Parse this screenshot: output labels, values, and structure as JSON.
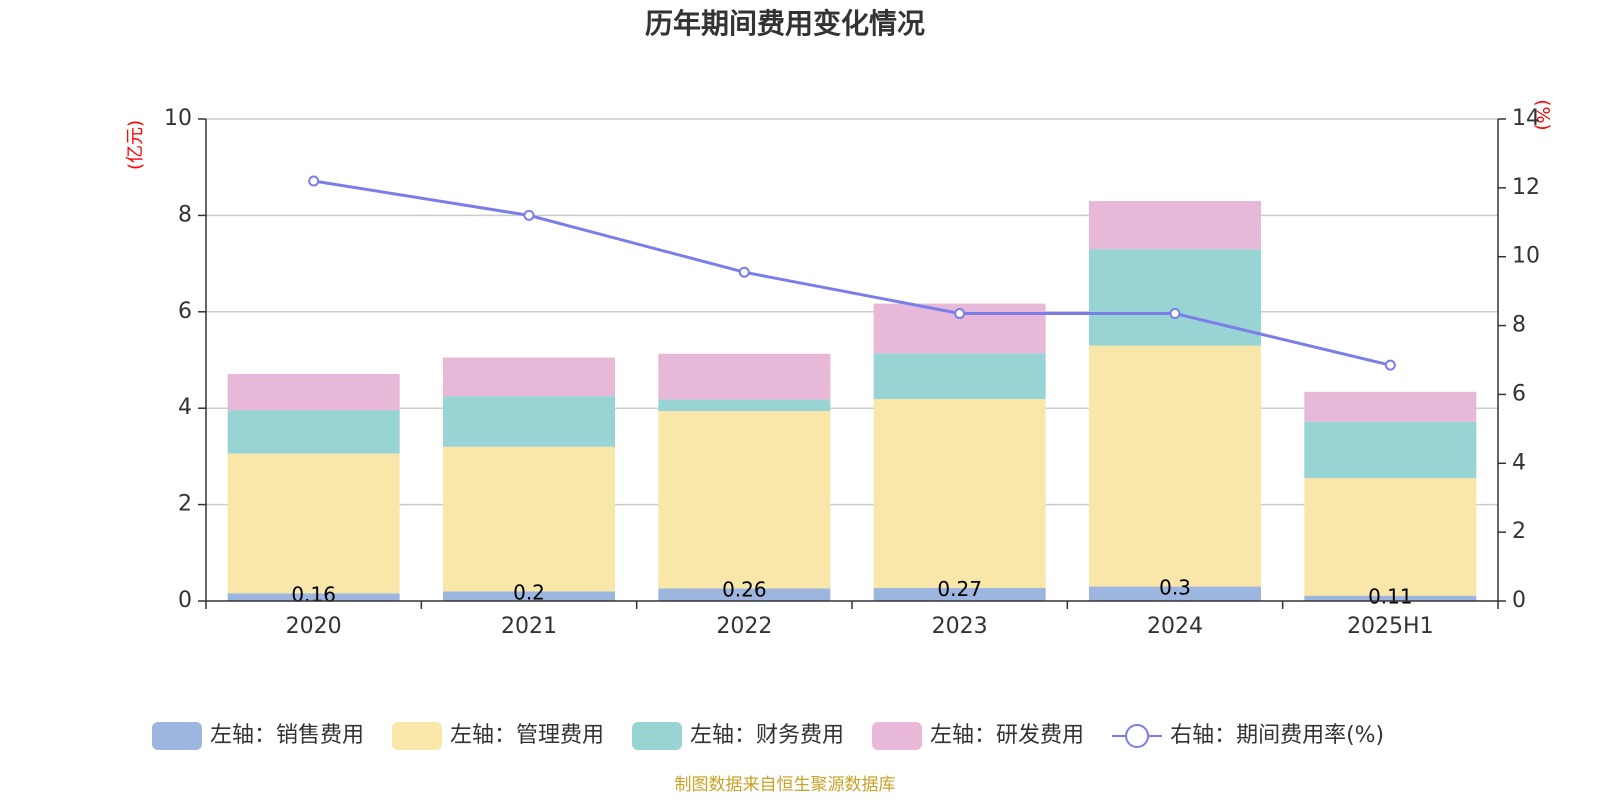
{
  "chart_data": {
    "type": "bar",
    "title": "历年期间费用变化情况",
    "categories": [
      "2020",
      "2021",
      "2022",
      "2023",
      "2024",
      "2025H1"
    ],
    "y_left_unit": "(亿元)",
    "y_right_unit": "(%)",
    "y_left_range": [
      0,
      10
    ],
    "y_left_ticks": [
      "0",
      "2",
      "4",
      "6",
      "8",
      "10"
    ],
    "y_right_range": [
      0,
      14
    ],
    "y_right_ticks": [
      "0",
      "2",
      "4",
      "6",
      "8",
      "10",
      "12",
      "14"
    ],
    "grid": true,
    "stacked": true,
    "series": [
      {
        "name": "左轴：销售费用",
        "axis": "left",
        "color": "#9cb6e0",
        "values": [
          0.16,
          0.2,
          0.26,
          0.27,
          0.3,
          0.11
        ],
        "labels": [
          "0.16",
          "0.2",
          "0.26",
          "0.27",
          "0.3",
          "0.11"
        ]
      },
      {
        "name": "左轴：管理费用",
        "axis": "left",
        "color": "#f8e7a8",
        "values": [
          2.9,
          3.0,
          3.68,
          3.92,
          5.0,
          2.44
        ]
      },
      {
        "name": "左轴：财务费用",
        "axis": "left",
        "color": "#98d4d4",
        "values": [
          0.9,
          1.05,
          0.24,
          0.95,
          2.0,
          1.17
        ]
      },
      {
        "name": "左轴：研发费用",
        "axis": "left",
        "color": "#e8b8d8",
        "values": [
          0.75,
          0.8,
          0.95,
          1.03,
          1.0,
          0.62
        ]
      },
      {
        "name": "右轴：期间费用率(%)",
        "axis": "right",
        "type": "line",
        "color": "#7b7ee8",
        "values": [
          12.2,
          11.2,
          9.55,
          8.35,
          8.35,
          6.85
        ]
      }
    ],
    "legend_position": "bottom"
  },
  "source_note": "制图数据来自恒生聚源数据库"
}
